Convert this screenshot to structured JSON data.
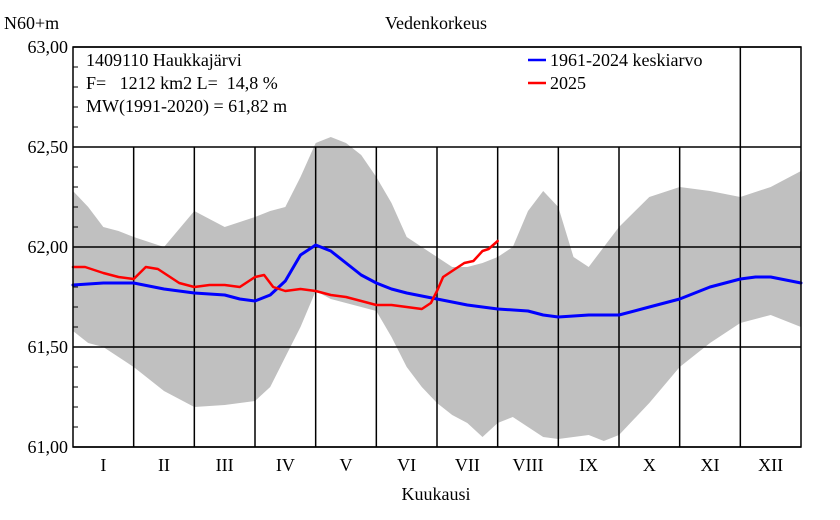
{
  "chart_data": {
    "type": "line",
    "title": "Vedenkorkeus",
    "ylabel": "N60+m",
    "xlabel": "Kuukausi",
    "ylim": [
      61.0,
      63.0
    ],
    "xlim": [
      0,
      12
    ],
    "grid": true,
    "legend_position": "top-right",
    "y_ticks": [
      {
        "value": 63.0,
        "label": "63,00"
      },
      {
        "value": 62.5,
        "label": "62,50"
      },
      {
        "value": 62.0,
        "label": "62,00"
      },
      {
        "value": 61.5,
        "label": "61,50"
      },
      {
        "value": 61.0,
        "label": "61,00"
      }
    ],
    "x_categories": [
      "I",
      "II",
      "III",
      "IV",
      "V",
      "VI",
      "VII",
      "VIII",
      "IX",
      "X",
      "XI",
      "XII"
    ],
    "info_lines": [
      "1409110 Haukkajärvi",
      "F=   1212 km2 L=  14,8 %",
      "MW(1991-2020) = 61,82 m"
    ],
    "range_band": {
      "color": "#c0c0c0",
      "x": [
        0,
        0.25,
        0.5,
        0.75,
        1.0,
        1.5,
        2.0,
        2.5,
        3.0,
        3.25,
        3.5,
        3.75,
        4.0,
        4.25,
        4.5,
        4.75,
        5.0,
        5.25,
        5.5,
        5.75,
        6.0,
        6.25,
        6.5,
        6.75,
        7.0,
        7.25,
        7.5,
        7.75,
        8.0,
        8.25,
        8.5,
        8.75,
        9.0,
        9.5,
        10.0,
        10.5,
        11.0,
        11.5,
        12.0
      ],
      "low": [
        61.58,
        61.52,
        61.5,
        61.45,
        61.4,
        61.28,
        61.2,
        61.21,
        61.23,
        61.3,
        61.45,
        61.6,
        61.78,
        61.74,
        61.72,
        61.7,
        61.68,
        61.55,
        61.4,
        61.3,
        61.22,
        61.16,
        61.12,
        61.05,
        61.12,
        61.15,
        61.1,
        61.05,
        61.04,
        61.05,
        61.06,
        61.03,
        61.06,
        61.22,
        61.4,
        61.52,
        61.62,
        61.66,
        61.6
      ],
      "high": [
        62.28,
        62.2,
        62.1,
        62.08,
        62.05,
        62.0,
        62.18,
        62.1,
        62.15,
        62.18,
        62.2,
        62.35,
        62.52,
        62.55,
        62.52,
        62.46,
        62.35,
        62.22,
        62.05,
        62.0,
        61.95,
        61.9,
        61.9,
        61.92,
        61.95,
        62.0,
        62.18,
        62.28,
        62.2,
        61.95,
        61.9,
        62.0,
        62.1,
        62.25,
        62.3,
        62.28,
        62.25,
        62.3,
        62.38
      ]
    },
    "series": [
      {
        "name": "1961-2024 keskiarvo",
        "color": "#0000ff",
        "x": [
          0,
          0.5,
          1.0,
          1.5,
          2.0,
          2.5,
          2.75,
          3.0,
          3.25,
          3.5,
          3.75,
          4.0,
          4.25,
          4.5,
          4.75,
          5.0,
          5.25,
          5.5,
          6.0,
          6.5,
          7.0,
          7.5,
          7.75,
          8.0,
          8.5,
          9.0,
          9.5,
          10.0,
          10.5,
          11.0,
          11.25,
          11.5,
          12.0
        ],
        "y": [
          61.81,
          61.82,
          61.82,
          61.79,
          61.77,
          61.76,
          61.74,
          61.73,
          61.76,
          61.83,
          61.96,
          62.01,
          61.98,
          61.92,
          61.86,
          61.82,
          61.79,
          61.77,
          61.74,
          61.71,
          61.69,
          61.68,
          61.66,
          61.65,
          61.66,
          61.66,
          61.7,
          61.74,
          61.8,
          61.84,
          61.85,
          61.85,
          61.82
        ]
      },
      {
        "name": "2025",
        "color": "#ff0000",
        "x": [
          0,
          0.2,
          0.5,
          0.75,
          1.0,
          1.2,
          1.4,
          1.6,
          1.75,
          2.0,
          2.25,
          2.5,
          2.75,
          3.0,
          3.15,
          3.3,
          3.5,
          3.75,
          4.0,
          4.25,
          4.5,
          4.75,
          5.0,
          5.25,
          5.5,
          5.75,
          5.9,
          6.0,
          6.1,
          6.3,
          6.45,
          6.6,
          6.75,
          6.85,
          7.0
        ],
        "y": [
          61.9,
          61.9,
          61.87,
          61.85,
          61.84,
          61.9,
          61.89,
          61.85,
          61.82,
          61.8,
          61.81,
          61.81,
          61.8,
          61.85,
          61.86,
          61.8,
          61.78,
          61.79,
          61.78,
          61.76,
          61.75,
          61.73,
          61.71,
          61.71,
          61.7,
          61.69,
          61.72,
          61.78,
          61.85,
          61.89,
          61.92,
          61.93,
          61.98,
          61.99,
          62.03
        ]
      }
    ]
  }
}
